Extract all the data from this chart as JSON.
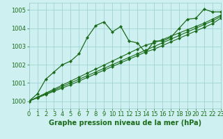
{
  "title": "Graphe pression niveau de la mer (hPa)",
  "bg_color": "#cff0f0",
  "grid_color": "#99cccc",
  "line_color": "#1a6b1a",
  "x_min": 0,
  "x_max": 23,
  "y_min": 999.6,
  "y_max": 1005.4,
  "yticks": [
    1000,
    1001,
    1002,
    1003,
    1004,
    1005
  ],
  "xticks": [
    0,
    1,
    2,
    3,
    4,
    5,
    6,
    7,
    8,
    9,
    10,
    11,
    12,
    13,
    14,
    15,
    16,
    17,
    18,
    19,
    20,
    21,
    22,
    23
  ],
  "series_jagged": [
    1000.0,
    1000.4,
    1001.2,
    1001.6,
    1002.0,
    1002.2,
    1002.6,
    1003.5,
    1004.15,
    1004.35,
    1003.8,
    1004.1,
    1003.3,
    1003.2,
    1002.65,
    1003.3,
    1003.3,
    1003.5,
    1004.0,
    1004.5,
    1004.55,
    1005.05,
    1004.9,
    1004.9
  ],
  "series_linear1": [
    1000.0,
    1000.2,
    1000.4,
    1000.6,
    1000.8,
    1001.0,
    1001.2,
    1001.4,
    1001.6,
    1001.8,
    1002.0,
    1002.2,
    1002.4,
    1002.6,
    1002.8,
    1003.0,
    1003.2,
    1003.4,
    1003.6,
    1003.8,
    1004.0,
    1004.2,
    1004.4,
    1004.65
  ],
  "series_linear2": [
    1000.0,
    1000.22,
    1000.44,
    1000.66,
    1000.88,
    1001.1,
    1001.32,
    1001.54,
    1001.76,
    1001.98,
    1002.2,
    1002.42,
    1002.64,
    1002.86,
    1003.08,
    1003.2,
    1003.38,
    1003.56,
    1003.74,
    1003.92,
    1004.1,
    1004.28,
    1004.5,
    1004.72
  ],
  "series_linear3": [
    1000.0,
    1000.18,
    1000.36,
    1000.54,
    1000.72,
    1000.9,
    1001.1,
    1001.3,
    1001.5,
    1001.7,
    1001.9,
    1002.1,
    1002.3,
    1002.5,
    1002.7,
    1002.85,
    1003.05,
    1003.25,
    1003.45,
    1003.65,
    1003.85,
    1004.05,
    1004.25,
    1004.55
  ],
  "title_fontsize": 7,
  "tick_fontsize": 6,
  "title_color": "#1a6b1a",
  "tick_color": "#1a6b1a"
}
